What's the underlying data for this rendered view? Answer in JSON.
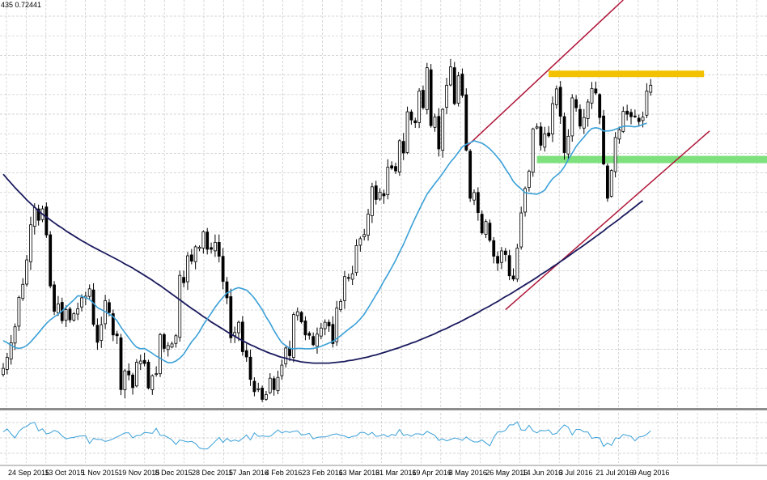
{
  "window": {
    "info_text": "435 0.72441"
  },
  "colors": {
    "background": "#ffffff",
    "grid": "#c8c8c8",
    "candles": "#000000",
    "sma_fast": "#3aa0d8",
    "sma_slow": "#1a1a5e",
    "channel": "#b0173a",
    "resistance_zone": "#f2c200",
    "support_zone": "#7ee17e",
    "oscillator": "#3aa0d8",
    "separator": "#8c8c8c"
  },
  "chart_data": [
    {
      "type": "candlestick",
      "panel": "main",
      "x_labels": [
        "24 Sep 2015",
        "13 Oct 2015",
        "1 Nov 2015",
        "19 Nov 2015",
        "8 Dec 2015",
        "28 Dec 2015",
        "17 Jan 2016",
        "4 Feb 2016",
        "23 Feb 2016",
        "13 Mar 2016",
        "31 Mar 2016",
        "19 Apr 2016",
        "8 May 2016",
        "26 May 2016",
        "14 Jun 2016",
        "3 Jul 2016",
        "21 Jul 2016",
        "9 Aug 2016"
      ],
      "close": [
        0.6985,
        0.7012,
        0.7048,
        0.7087,
        0.7159,
        0.7191,
        0.7251,
        0.7337,
        0.7379,
        0.7348,
        0.7376,
        0.7312,
        0.7187,
        0.7125,
        0.7143,
        0.7102,
        0.7129,
        0.7104,
        0.7119,
        0.7131,
        0.7158,
        0.7162,
        0.718,
        0.7093,
        0.7049,
        0.7092,
        0.7151,
        0.7122,
        0.7067,
        0.7065,
        0.6933,
        0.6979,
        0.6969,
        0.6938,
        0.7,
        0.7003,
        0.6997,
        0.6937,
        0.6967,
        0.6972,
        0.7068,
        0.7034,
        0.7041,
        0.7045,
        0.7065,
        0.7213,
        0.7195,
        0.7261,
        0.7248,
        0.7283,
        0.7282,
        0.732,
        0.7277,
        0.7277,
        0.7294,
        0.726,
        0.7198,
        0.7158,
        0.706,
        0.7073,
        0.7098,
        0.7026,
        0.7013,
        0.6958,
        0.6928,
        0.6935,
        0.6909,
        0.6921,
        0.6961,
        0.6933,
        0.6963,
        0.6993,
        0.7035,
        0.7016,
        0.7117,
        0.7124,
        0.7099,
        0.7067,
        0.7066,
        0.7043,
        0.7069,
        0.7084,
        0.7098,
        0.7089,
        0.7046,
        0.7133,
        0.7149,
        0.721,
        0.7207,
        0.7217,
        0.7286,
        0.7303,
        0.7313,
        0.7363,
        0.743,
        0.7399,
        0.7417,
        0.7408,
        0.7478,
        0.7476,
        0.7469,
        0.7543,
        0.7513,
        0.7614,
        0.7594,
        0.7587,
        0.7665,
        0.7624,
        0.7722,
        0.758,
        0.7601,
        0.7523,
        0.762,
        0.7679,
        0.7724,
        0.7634,
        0.7702,
        0.7654,
        0.752,
        0.7402,
        0.7416,
        0.7367,
        0.7317,
        0.7345,
        0.7299,
        0.726,
        0.7243,
        0.7273,
        0.7264,
        0.7212,
        0.7204,
        0.728,
        0.7366,
        0.7426,
        0.7468,
        0.7572,
        0.7577,
        0.7532,
        0.756,
        0.7555,
        0.7634,
        0.767,
        0.7603,
        0.7514,
        0.7554,
        0.7648,
        0.7624,
        0.7579,
        0.76,
        0.7638,
        0.7671,
        0.766,
        0.76,
        0.7486,
        0.7402,
        0.747,
        0.7551,
        0.757,
        0.7615,
        0.7608,
        0.7602,
        0.7602,
        0.759,
        0.7601,
        0.7665,
        0.7679
      ],
      "sma_fast": [
        0.7053,
        0.7048,
        0.7042,
        0.7036,
        0.7034,
        0.7036,
        0.7041,
        0.705,
        0.7061,
        0.7072,
        0.7084,
        0.7095,
        0.7104,
        0.7111,
        0.7118,
        0.7126,
        0.7135,
        0.7144,
        0.7153,
        0.7163,
        0.7162,
        0.7158,
        0.7154,
        0.7145,
        0.7134,
        0.7129,
        0.7124,
        0.7118,
        0.7112,
        0.7102,
        0.7086,
        0.7073,
        0.706,
        0.7047,
        0.7037,
        0.7033,
        0.7034,
        0.7028,
        0.7022,
        0.7015,
        0.701,
        0.7004,
        0.6999,
        0.6999,
        0.7003,
        0.701,
        0.702,
        0.7035,
        0.705,
        0.7061,
        0.7075,
        0.7092,
        0.7106,
        0.712,
        0.7135,
        0.7148,
        0.7159,
        0.717,
        0.7174,
        0.718,
        0.7183,
        0.718,
        0.7177,
        0.7168,
        0.7157,
        0.7143,
        0.7129,
        0.7111,
        0.7096,
        0.7078,
        0.7062,
        0.7048,
        0.7041,
        0.7034,
        0.7033,
        0.7034,
        0.7034,
        0.7033,
        0.7033,
        0.7034,
        0.7036,
        0.7039,
        0.7043,
        0.7047,
        0.7051,
        0.7058,
        0.7065,
        0.7073,
        0.7081,
        0.7088,
        0.7096,
        0.7106,
        0.7118,
        0.7133,
        0.7149,
        0.7165,
        0.7181,
        0.7199,
        0.7215,
        0.7232,
        0.725,
        0.727,
        0.7289,
        0.7311,
        0.7333,
        0.7354,
        0.7374,
        0.7393,
        0.7412,
        0.7425,
        0.7438,
        0.745,
        0.7463,
        0.7477,
        0.7491,
        0.7502,
        0.7515,
        0.7528,
        0.7534,
        0.7538,
        0.7543,
        0.754,
        0.7537,
        0.7531,
        0.7523,
        0.7513,
        0.7502,
        0.749,
        0.7474,
        0.746,
        0.7443,
        0.7433,
        0.7425,
        0.7416,
        0.7414,
        0.7413,
        0.7412,
        0.7416,
        0.7422,
        0.7437,
        0.745,
        0.7458,
        0.7466,
        0.7479,
        0.7497,
        0.7513,
        0.7529,
        0.7541,
        0.7552,
        0.7564,
        0.7573,
        0.7575,
        0.7573,
        0.7567,
        0.7567,
        0.7568,
        0.7571,
        0.7575,
        0.7578,
        0.7579,
        0.7578,
        0.7577,
        0.7579,
        0.7583,
        0.7586
      ],
      "sma_slow": [
        0.7461,
        0.745,
        0.7439,
        0.7428,
        0.7418,
        0.7408,
        0.7398,
        0.7389,
        0.738,
        0.7371,
        0.7363,
        0.7356,
        0.7349,
        0.7342,
        0.7335,
        0.7329,
        0.7322,
        0.7316,
        0.731,
        0.7304,
        0.7298,
        0.7293,
        0.7287,
        0.7282,
        0.7277,
        0.7272,
        0.7267,
        0.7262,
        0.7257,
        0.7252,
        0.7247,
        0.7241,
        0.7236,
        0.7231,
        0.7225,
        0.7219,
        0.7213,
        0.7207,
        0.7201,
        0.7194,
        0.7188,
        0.7181,
        0.7174,
        0.7167,
        0.716,
        0.7153,
        0.7146,
        0.7139,
        0.7132,
        0.7126,
        0.7119,
        0.7112,
        0.7106,
        0.7099,
        0.7093,
        0.7087,
        0.7081,
        0.7075,
        0.7069,
        0.7064,
        0.7058,
        0.7053,
        0.7048,
        0.7043,
        0.7039,
        0.7034,
        0.703,
        0.7026,
        0.7022,
        0.7019,
        0.7015,
        0.7012,
        0.701,
        0.7007,
        0.7005,
        0.7003,
        0.7001,
        0.7,
        0.6999,
        0.6998,
        0.6998,
        0.6998,
        0.6998,
        0.6998,
        0.6999,
        0.7,
        0.7001,
        0.7002,
        0.7004,
        0.7005,
        0.7007,
        0.7009,
        0.7011,
        0.7013,
        0.7016,
        0.7018,
        0.7021,
        0.7024,
        0.7027,
        0.703,
        0.7033,
        0.7036,
        0.704,
        0.7043,
        0.7047,
        0.705,
        0.7054,
        0.7058,
        0.7062,
        0.7066,
        0.707,
        0.7075,
        0.7079,
        0.7083,
        0.7088,
        0.7093,
        0.7097,
        0.7102,
        0.7107,
        0.7112,
        0.7117,
        0.7122,
        0.7128,
        0.7133,
        0.7138,
        0.7144,
        0.7149,
        0.7155,
        0.7161,
        0.7166,
        0.7172,
        0.7178,
        0.7184,
        0.719,
        0.7196,
        0.7202,
        0.7208,
        0.7215,
        0.7221,
        0.7227,
        0.7234,
        0.724,
        0.7247,
        0.7253,
        0.726,
        0.7267,
        0.7274,
        0.728,
        0.7287,
        0.7294,
        0.7301,
        0.7308,
        0.7315,
        0.7322,
        0.733,
        0.7337,
        0.7344,
        0.7351,
        0.7359,
        0.7366,
        0.7374,
        0.7381,
        0.7389,
        0.7396
      ],
      "resistance_zone_level": 0.7707,
      "support_zone_level": 0.7497,
      "channel_upper": {
        "from": 0.7528,
        "to": 0.7888
      },
      "channel_lower": {
        "from": 0.7129,
        "to": 0.7567
      },
      "ylim": [
        0.689,
        0.7888
      ],
      "grid": true
    },
    {
      "type": "line",
      "panel": "oscillator",
      "values": [
        0.62,
        0.68,
        0.58,
        0.5,
        0.63,
        0.7,
        0.73,
        0.79,
        0.81,
        0.64,
        0.68,
        0.58,
        0.6,
        0.65,
        0.62,
        0.54,
        0.48,
        0.5,
        0.51,
        0.53,
        0.54,
        0.54,
        0.39,
        0.49,
        0.47,
        0.47,
        0.43,
        0.45,
        0.48,
        0.52,
        0.56,
        0.6,
        0.6,
        0.5,
        0.55,
        0.55,
        0.61,
        0.6,
        0.59,
        0.69,
        0.55,
        0.55,
        0.51,
        0.46,
        0.37,
        0.46,
        0.44,
        0.42,
        0.43,
        0.39,
        0.3,
        0.28,
        0.28,
        0.35,
        0.43,
        0.51,
        0.41,
        0.49,
        0.43,
        0.46,
        0.43,
        0.49,
        0.56,
        0.46,
        0.6,
        0.53,
        0.54,
        0.53,
        0.53,
        0.59,
        0.66,
        0.6,
        0.63,
        0.61,
        0.63,
        0.64,
        0.56,
        0.57,
        0.59,
        0.48,
        0.51,
        0.52,
        0.52,
        0.54,
        0.57,
        0.58,
        0.55,
        0.54,
        0.5,
        0.53,
        0.54,
        0.61,
        0.61,
        0.56,
        0.61,
        0.53,
        0.54,
        0.57,
        0.52,
        0.57,
        0.55,
        0.67,
        0.55,
        0.57,
        0.53,
        0.58,
        0.58,
        0.56,
        0.63,
        0.59,
        0.55,
        0.45,
        0.48,
        0.44,
        0.47,
        0.5,
        0.48,
        0.45,
        0.52,
        0.46,
        0.42,
        0.42,
        0.46,
        0.4,
        0.34,
        0.51,
        0.62,
        0.62,
        0.65,
        0.76,
        0.76,
        0.82,
        0.66,
        0.65,
        0.75,
        0.64,
        0.6,
        0.65,
        0.64,
        0.66,
        0.57,
        0.59,
        0.68,
        0.76,
        0.71,
        0.56,
        0.67,
        0.67,
        0.62,
        0.62,
        0.49,
        0.51,
        0.5,
        0.33,
        0.4,
        0.35,
        0.5,
        0.49,
        0.57,
        0.55,
        0.53,
        0.44,
        0.52,
        0.53,
        0.57,
        0.64
      ],
      "ylim": [
        0,
        1
      ]
    }
  ]
}
